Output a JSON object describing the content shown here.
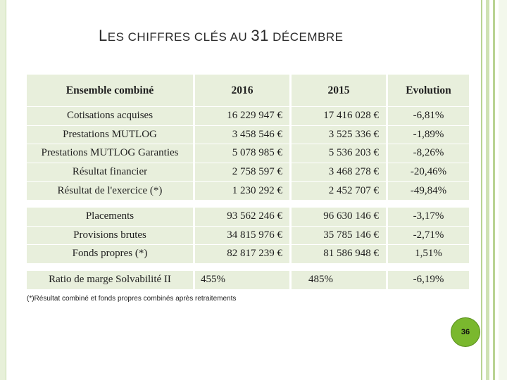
{
  "title": {
    "l1": "L",
    "w1": "ES CHIFFRES CLÉS AU ",
    "num": "31",
    "w2": " DÉCEMBRE"
  },
  "table": {
    "headers": [
      "Ensemble combiné",
      "2016",
      "2015",
      "Evolution"
    ],
    "group_a": [
      [
        "Cotisations acquises",
        "16 229 947 €",
        "17 416 028 €",
        "-6,81%"
      ],
      [
        "Prestations  MUTLOG",
        "3 458 546 €",
        "3 525 336 €",
        "-1,89%"
      ],
      [
        "Prestations MUTLOG Garanties",
        "5 078 985 €",
        "5 536 203 €",
        "-8,26%"
      ],
      [
        "Résultat financier",
        "2 758 597 €",
        "3 468 278 €",
        "-20,46%"
      ],
      [
        "Résultat de l'exercice (*)",
        "1 230 292 €",
        "2 452 707 €",
        "-49,84%"
      ]
    ],
    "group_b": [
      [
        "Placements",
        "93 562 246 €",
        "96 630 146 €",
        "-3,17%"
      ],
      [
        "Provisions brutes",
        "34 815 976 €",
        "35 785 146 €",
        "-2,71%"
      ],
      [
        "Fonds propres (*)",
        "82 817 239 €",
        "81 586 948 €",
        "1,51%"
      ]
    ],
    "group_c": [
      [
        "Ratio de marge Solvabilité II",
        "455%",
        "485%",
        "-6,19%"
      ]
    ]
  },
  "note": "(*)Résultat combiné et fonds propres combinés après retraitements",
  "page_number": "36"
}
